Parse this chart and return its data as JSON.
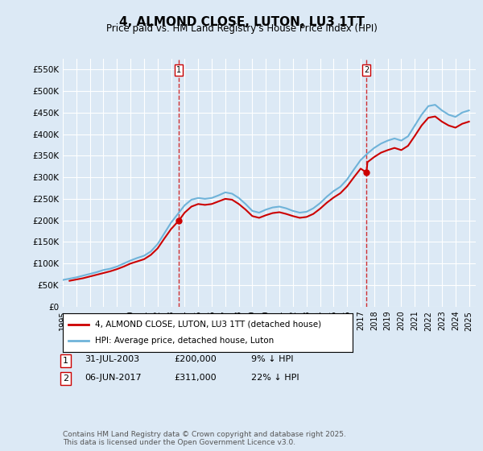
{
  "title": "4, ALMOND CLOSE, LUTON, LU3 1TT",
  "subtitle": "Price paid vs. HM Land Registry's House Price Index (HPI)",
  "ylabel_ticks": [
    "£0",
    "£50K",
    "£100K",
    "£150K",
    "£200K",
    "£250K",
    "£300K",
    "£350K",
    "£400K",
    "£450K",
    "£500K",
    "£550K"
  ],
  "ytick_values": [
    0,
    50000,
    100000,
    150000,
    200000,
    250000,
    300000,
    350000,
    400000,
    450000,
    500000,
    550000
  ],
  "ylim": [
    0,
    575000
  ],
  "xlim_start": 1995.0,
  "xlim_end": 2025.5,
  "xticks": [
    1995,
    1996,
    1997,
    1998,
    1999,
    2000,
    2001,
    2002,
    2003,
    2004,
    2005,
    2006,
    2007,
    2008,
    2009,
    2010,
    2011,
    2012,
    2013,
    2014,
    2015,
    2016,
    2017,
    2018,
    2019,
    2020,
    2021,
    2022,
    2023,
    2024,
    2025
  ],
  "background_color": "#dce9f5",
  "plot_bg_color": "#dce9f5",
  "grid_color": "white",
  "line1_color": "#cc0000",
  "line2_color": "#6fb3d9",
  "legend_label1": "4, ALMOND CLOSE, LUTON, LU3 1TT (detached house)",
  "legend_label2": "HPI: Average price, detached house, Luton",
  "marker1_date": 2003.58,
  "marker1_value": 200000,
  "marker1_label": "1",
  "marker2_date": 2017.43,
  "marker2_value": 311000,
  "marker2_label": "2",
  "annotation1": "1    31-JUL-2003         £200,000         9% ↓ HPI",
  "annotation2": "2    06-JUN-2017         £311,000       22% ↓ HPI",
  "footnote": "Contains HM Land Registry data © Crown copyright and database right 2025.\nThis data is licensed under the Open Government Licence v3.0.",
  "hpi_data": {
    "years": [
      1995.0,
      1995.5,
      1996.0,
      1996.5,
      1997.0,
      1997.5,
      1998.0,
      1998.5,
      1999.0,
      1999.5,
      2000.0,
      2000.5,
      2001.0,
      2001.5,
      2002.0,
      2002.5,
      2003.0,
      2003.5,
      2004.0,
      2004.5,
      2005.0,
      2005.5,
      2006.0,
      2006.5,
      2007.0,
      2007.5,
      2008.0,
      2008.5,
      2009.0,
      2009.5,
      2010.0,
      2010.5,
      2011.0,
      2011.5,
      2012.0,
      2012.5,
      2013.0,
      2013.5,
      2014.0,
      2014.5,
      2015.0,
      2015.5,
      2016.0,
      2016.5,
      2017.0,
      2017.5,
      2018.0,
      2018.5,
      2019.0,
      2019.5,
      2020.0,
      2020.5,
      2021.0,
      2021.5,
      2022.0,
      2022.5,
      2023.0,
      2023.5,
      2024.0,
      2024.5,
      2025.0
    ],
    "values": [
      62000,
      65000,
      68000,
      72000,
      76000,
      80000,
      85000,
      88000,
      93000,
      100000,
      107000,
      113000,
      118000,
      128000,
      145000,
      170000,
      195000,
      215000,
      235000,
      248000,
      252000,
      250000,
      252000,
      258000,
      265000,
      262000,
      252000,
      238000,
      222000,
      218000,
      225000,
      230000,
      232000,
      228000,
      222000,
      218000,
      220000,
      228000,
      240000,
      255000,
      268000,
      278000,
      295000,
      318000,
      340000,
      355000,
      368000,
      378000,
      385000,
      390000,
      385000,
      395000,
      420000,
      445000,
      465000,
      468000,
      455000,
      445000,
      440000,
      450000,
      455000
    ]
  },
  "price_data": {
    "years": [
      1995.5,
      1996.0,
      1996.5,
      1997.0,
      1997.5,
      1998.0,
      1998.5,
      1999.0,
      1999.5,
      2000.0,
      2000.5,
      2001.0,
      2001.5,
      2002.0,
      2002.5,
      2003.0,
      2003.58,
      2004.0,
      2004.5,
      2005.0,
      2005.5,
      2006.0,
      2006.5,
      2007.0,
      2007.5,
      2008.0,
      2008.5,
      2009.0,
      2009.5,
      2010.0,
      2010.5,
      2011.0,
      2011.5,
      2012.0,
      2012.5,
      2013.0,
      2013.5,
      2014.0,
      2014.5,
      2015.0,
      2015.5,
      2016.0,
      2016.5,
      2017.0,
      2017.43,
      2017.5,
      2018.0,
      2018.5,
      2019.0,
      2019.5,
      2020.0,
      2020.5,
      2021.0,
      2021.5,
      2022.0,
      2022.5,
      2023.0,
      2023.5,
      2024.0,
      2024.5,
      2025.0
    ],
    "values": [
      60000,
      63000,
      66000,
      70000,
      74000,
      78000,
      82000,
      87000,
      93000,
      100000,
      105000,
      110000,
      120000,
      135000,
      158000,
      180000,
      200000,
      218000,
      232000,
      238000,
      236000,
      238000,
      244000,
      250000,
      248000,
      238000,
      225000,
      210000,
      206000,
      212000,
      217000,
      219000,
      215000,
      210000,
      206000,
      208000,
      215000,
      227000,
      241000,
      253000,
      263000,
      279000,
      300000,
      320000,
      311000,
      335000,
      347000,
      357000,
      363000,
      368000,
      363000,
      373000,
      396000,
      420000,
      438000,
      441000,
      429000,
      420000,
      415000,
      424000,
      429000
    ]
  }
}
